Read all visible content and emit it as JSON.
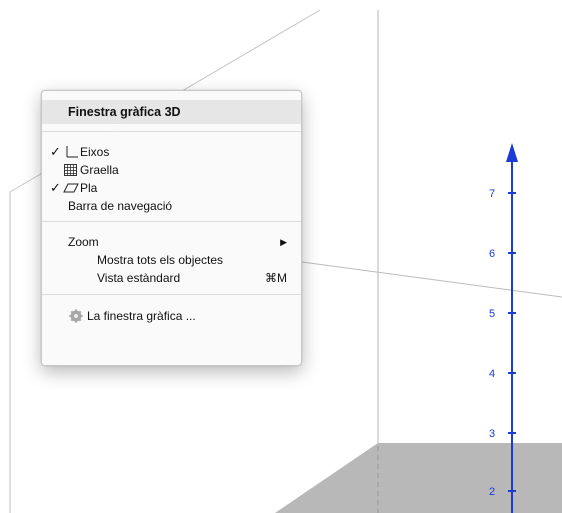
{
  "view": {
    "axis_color": "#1a3bd6",
    "plane_color": "#b8b8b8",
    "axis_labels": [
      "7",
      "6",
      "5",
      "4",
      "3",
      "2"
    ]
  },
  "menu": {
    "title": "Finestra gràfica 3D",
    "items": [
      {
        "label": "Eixos",
        "checked": true,
        "icon": "axes-icon"
      },
      {
        "label": "Graella",
        "checked": false,
        "icon": "grid-icon"
      },
      {
        "label": "Pla",
        "checked": true,
        "icon": "plane-icon"
      },
      {
        "label": "Barra de navegació",
        "checked": false
      }
    ],
    "zoom": {
      "label": "Zoom",
      "show_all": "Mostra tots els objectes",
      "standard_view": "Vista estàndard",
      "standard_shortcut": "⌘M"
    },
    "settings": {
      "label": "La finestra gràfica ...",
      "icon": "gear-icon"
    },
    "check_glyph": "✓",
    "submenu_glyph": "▶"
  }
}
